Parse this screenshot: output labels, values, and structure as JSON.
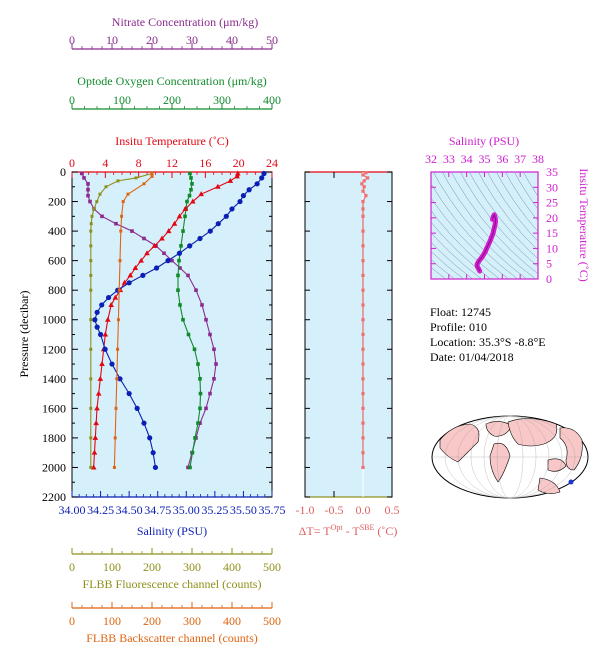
{
  "colors": {
    "nitrate": "#8b2b8e",
    "oxygen": "#118a2c",
    "temperature": "#e30613",
    "salinity": "#0b1fb5",
    "fluorescence": "#8f8f1c",
    "backscatter": "#e06412",
    "delta_t": "#f07070",
    "ts_axis": "#d01ed0",
    "panel_bg": "#d6f0fb",
    "land": "#f8c7c7"
  },
  "info": {
    "float": "Float:  12745",
    "profile": "Profile:  010",
    "location": "Location:  35.3°S  -8.8°E",
    "date": "Date:  01/04/2018"
  },
  "chart_data": [
    {
      "type": "line",
      "panel": "profiles",
      "ylabel": "Pressure (decibar)",
      "ylim": [
        2200,
        0
      ],
      "yticks": [
        "0",
        "200",
        "400",
        "600",
        "800",
        "1000",
        "1200",
        "1400",
        "1600",
        "1800",
        "2000",
        "2200"
      ],
      "axes": {
        "nitrate": {
          "label": "Nitrate Concentration (μm/kg)",
          "range": [
            0,
            50
          ],
          "ticks": [
            "0",
            "10",
            "20",
            "30",
            "40",
            "50"
          ]
        },
        "oxygen": {
          "label": "Optode Oxygen Concentration (μm/kg)",
          "range": [
            0,
            400
          ],
          "ticks": [
            "0",
            "100",
            "200",
            "300",
            "400"
          ]
        },
        "temperature": {
          "label": "Insitu Temperature (˚C)",
          "range": [
            0,
            24
          ],
          "ticks": [
            "0",
            "4",
            "8",
            "12",
            "16",
            "20",
            "24"
          ]
        },
        "salinity": {
          "label": "Salinity (PSU)",
          "range": [
            34.0,
            35.75
          ],
          "ticks": [
            "34.00",
            "34.25",
            "34.50",
            "34.75",
            "35.00",
            "35.25",
            "35.50",
            "35.75"
          ]
        },
        "fluorescence": {
          "label": "FLBB Fluorescence channel (counts)",
          "range": [
            0,
            500
          ],
          "ticks": [
            "0",
            "100",
            "200",
            "300",
            "400",
            "500"
          ]
        },
        "backscatter": {
          "label": "FLBB Backscatter channel (counts)",
          "range": [
            0,
            500
          ],
          "ticks": [
            "0",
            "100",
            "200",
            "300",
            "400",
            "500"
          ]
        }
      },
      "series": [
        {
          "name": "Nitrate",
          "axis": "nitrate",
          "marker": "square",
          "points": [
            [
              2.5,
              10
            ],
            [
              3,
              40
            ],
            [
              4,
              80
            ],
            [
              4,
              120
            ],
            [
              4,
              160
            ],
            [
              4.5,
              200
            ],
            [
              5.5,
              250
            ],
            [
              7.5,
              300
            ],
            [
              11,
              350
            ],
            [
              15,
              400
            ],
            [
              18,
              450
            ],
            [
              21,
              500
            ],
            [
              23,
              550
            ],
            [
              25,
              600
            ],
            [
              27,
              650
            ],
            [
              29,
              700
            ],
            [
              31,
              800
            ],
            [
              32.5,
              900
            ],
            [
              33.5,
              1000
            ],
            [
              34.5,
              1100
            ],
            [
              35.5,
              1200
            ],
            [
              36,
              1300
            ],
            [
              35.5,
              1400
            ],
            [
              34.5,
              1500
            ],
            [
              33.5,
              1600
            ],
            [
              32,
              1700
            ],
            [
              31,
              1800
            ],
            [
              30,
              1900
            ],
            [
              29,
              2000
            ]
          ]
        },
        {
          "name": "Oxygen",
          "axis": "oxygen",
          "marker": "square",
          "points": [
            [
              236,
              10
            ],
            [
              238,
              40
            ],
            [
              240,
              80
            ],
            [
              238,
              120
            ],
            [
              235,
              160
            ],
            [
              230,
              200
            ],
            [
              228,
              250
            ],
            [
              226,
              300
            ],
            [
              222,
              400
            ],
            [
              218,
              500
            ],
            [
              214,
              600
            ],
            [
              212,
              700
            ],
            [
              212,
              800
            ],
            [
              216,
              900
            ],
            [
              222,
              1000
            ],
            [
              233,
              1100
            ],
            [
              245,
              1200
            ],
            [
              252,
              1300
            ],
            [
              256,
              1400
            ],
            [
              257,
              1500
            ],
            [
              256,
              1600
            ],
            [
              252,
              1700
            ],
            [
              246,
              1800
            ],
            [
              241,
              1900
            ],
            [
              236,
              2000
            ]
          ]
        },
        {
          "name": "Temperature",
          "axis": "temperature",
          "marker": "triangle",
          "points": [
            [
              19.9,
              10
            ],
            [
              19.8,
              30
            ],
            [
              19,
              60
            ],
            [
              17.5,
              100
            ],
            [
              15.5,
              150
            ],
            [
              14.5,
              200
            ],
            [
              13.6,
              250
            ],
            [
              12.9,
              300
            ],
            [
              12.3,
              350
            ],
            [
              11.6,
              400
            ],
            [
              10.8,
              450
            ],
            [
              9.9,
              500
            ],
            [
              9,
              550
            ],
            [
              8.3,
              600
            ],
            [
              7.6,
              650
            ],
            [
              7,
              700
            ],
            [
              6.3,
              750
            ],
            [
              5.8,
              800
            ],
            [
              5.2,
              850
            ],
            [
              4.7,
              900
            ],
            [
              4.3,
              1000
            ],
            [
              4,
              1100
            ],
            [
              3.8,
              1200
            ],
            [
              3.6,
              1300
            ],
            [
              3.4,
              1400
            ],
            [
              3.2,
              1500
            ],
            [
              3,
              1600
            ],
            [
              2.9,
              1700
            ],
            [
              2.8,
              1800
            ],
            [
              2.7,
              1900
            ],
            [
              2.6,
              2000
            ]
          ]
        },
        {
          "name": "Salinity",
          "axis": "salinity",
          "marker": "circle",
          "points": [
            [
              35.68,
              10
            ],
            [
              35.66,
              40
            ],
            [
              35.62,
              80
            ],
            [
              35.55,
              120
            ],
            [
              35.5,
              160
            ],
            [
              35.47,
              200
            ],
            [
              35.4,
              250
            ],
            [
              35.35,
              300
            ],
            [
              35.28,
              350
            ],
            [
              35.21,
              400
            ],
            [
              35.12,
              450
            ],
            [
              35.03,
              500
            ],
            [
              34.94,
              550
            ],
            [
              34.84,
              600
            ],
            [
              34.74,
              650
            ],
            [
              34.62,
              700
            ],
            [
              34.5,
              750
            ],
            [
              34.4,
              800
            ],
            [
              34.32,
              850
            ],
            [
              34.26,
              900
            ],
            [
              34.22,
              950
            ],
            [
              34.2,
              1000
            ],
            [
              34.22,
              1050
            ],
            [
              34.25,
              1100
            ],
            [
              34.29,
              1200
            ],
            [
              34.35,
              1300
            ],
            [
              34.42,
              1400
            ],
            [
              34.5,
              1500
            ],
            [
              34.57,
              1600
            ],
            [
              34.63,
              1700
            ],
            [
              34.68,
              1800
            ],
            [
              34.71,
              1900
            ],
            [
              34.73,
              2000
            ]
          ]
        },
        {
          "name": "Fluorescence",
          "axis": "fluorescence",
          "marker": "dot",
          "points": [
            [
              200,
              10
            ],
            [
              160,
              40
            ],
            [
              115,
              60
            ],
            [
              85,
              100
            ],
            [
              70,
              150
            ],
            [
              62,
              200
            ],
            [
              55,
              250
            ],
            [
              50,
              300
            ],
            [
              48,
              350
            ],
            [
              47,
              400
            ],
            [
              47,
              500
            ],
            [
              47,
              600
            ],
            [
              47,
              700
            ],
            [
              47,
              800
            ],
            [
              47,
              1000
            ],
            [
              47,
              1200
            ],
            [
              47,
              1400
            ],
            [
              47,
              1600
            ],
            [
              47,
              1800
            ],
            [
              47,
              2000
            ]
          ]
        },
        {
          "name": "Backscatter",
          "axis": "backscatter",
          "marker": "dot",
          "points": [
            [
              200,
              10
            ],
            [
              200,
              30
            ],
            [
              180,
              80
            ],
            [
              140,
              150
            ],
            [
              128,
              200
            ],
            [
              124,
              300
            ],
            [
              122,
              400
            ],
            [
              120,
              600
            ],
            [
              118,
              800
            ],
            [
              116,
              1000
            ],
            [
              114,
              1200
            ],
            [
              112,
              1400
            ],
            [
              110,
              1600
            ],
            [
              108,
              1800
            ],
            [
              106,
              2000
            ]
          ]
        }
      ]
    },
    {
      "type": "scatter",
      "panel": "delta-t",
      "xlabel": "ΔT= T",
      "xlabel_sup1": "Opt",
      "xlabel_mid": " - T",
      "xlabel_sup2": "SBE",
      "xlabel_unit": " (˚C)",
      "xlim": [
        -1.0,
        0.5
      ],
      "xticks": [
        "-1.0",
        "-0.5",
        "0.0",
        "0.5"
      ],
      "ylim": [
        2200,
        0
      ],
      "points": [
        [
          0.05,
          5
        ],
        [
          0.0,
          20
        ],
        [
          0.08,
          40
        ],
        [
          0.02,
          60
        ],
        [
          -0.02,
          80
        ],
        [
          0.02,
          100
        ],
        [
          0.0,
          130
        ],
        [
          0.05,
          160
        ],
        [
          0.0,
          200
        ],
        [
          0.0,
          250
        ],
        [
          0.0,
          300
        ],
        [
          0.0,
          400
        ],
        [
          0.0,
          500
        ],
        [
          0.0,
          600
        ],
        [
          0.0,
          700
        ],
        [
          0.0,
          800
        ],
        [
          0.0,
          900
        ],
        [
          0.0,
          1000
        ],
        [
          0.0,
          1100
        ],
        [
          0.0,
          1200
        ],
        [
          0.0,
          1300
        ],
        [
          0.0,
          1400
        ],
        [
          0.0,
          1500
        ],
        [
          0.0,
          1600
        ],
        [
          0.0,
          1700
        ],
        [
          0.0,
          1800
        ],
        [
          0.0,
          1900
        ],
        [
          0.0,
          2000
        ]
      ]
    },
    {
      "type": "line",
      "panel": "ts-diagram",
      "xlabel": "Salinity (PSU)",
      "ylabel": "Insitu Temperature (˚C)",
      "xlim": [
        32,
        38
      ],
      "xticks": [
        "32",
        "33",
        "34",
        "35",
        "36",
        "37",
        "38"
      ],
      "ylim": [
        0,
        35
      ],
      "yticks": [
        "0",
        "5",
        "10",
        "15",
        "20",
        "25",
        "30",
        "35"
      ],
      "points": [
        [
          34.73,
          2.6
        ],
        [
          34.7,
          3
        ],
        [
          34.65,
          3.5
        ],
        [
          34.6,
          4
        ],
        [
          34.58,
          4.5
        ],
        [
          34.6,
          5
        ],
        [
          34.7,
          6
        ],
        [
          34.84,
          7
        ],
        [
          34.95,
          8
        ],
        [
          35.05,
          9
        ],
        [
          35.12,
          10
        ],
        [
          35.2,
          11
        ],
        [
          35.28,
          12
        ],
        [
          35.35,
          13
        ],
        [
          35.42,
          14
        ],
        [
          35.48,
          15
        ],
        [
          35.52,
          16
        ],
        [
          35.56,
          17
        ],
        [
          35.6,
          18
        ],
        [
          35.62,
          19
        ],
        [
          35.6,
          20
        ],
        [
          35.55,
          21
        ],
        [
          35.5,
          20.5
        ],
        [
          35.45,
          19.5
        ]
      ]
    }
  ]
}
